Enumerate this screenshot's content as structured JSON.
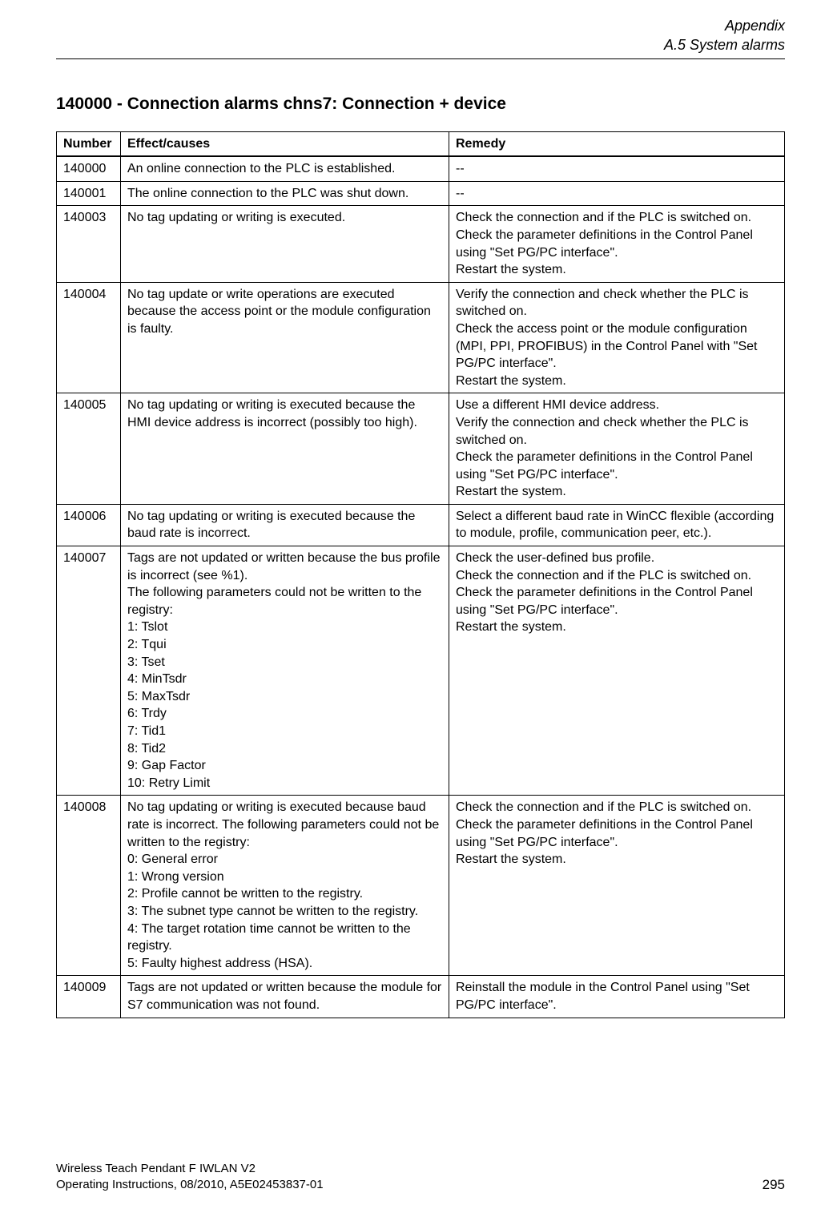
{
  "header": {
    "doc_section": "Appendix",
    "sub_section": "A.5 System alarms"
  },
  "section_title": "140000 - Connection alarms chns7: Connection + device",
  "table": {
    "columns": [
      "Number",
      "Effect/causes",
      "Remedy"
    ],
    "rows": [
      {
        "number": "140000",
        "effect": "An online connection to the PLC is established.",
        "remedy": "--"
      },
      {
        "number": "140001",
        "effect": "The online connection to the PLC was shut down.",
        "remedy": "--"
      },
      {
        "number": "140003",
        "effect": "No tag updating or writing is executed.",
        "remedy": "Check the connection and if the PLC is switched on.\nCheck the parameter definitions in the Control Panel using \"Set PG/PC interface\".\nRestart the system."
      },
      {
        "number": "140004",
        "effect": "No tag update or write operations are executed because the access point or the module configuration is faulty.",
        "remedy": "Verify the connection and check whether the PLC is switched on.\nCheck the access point or the module configuration (MPI, PPI, PROFIBUS) in the Control Panel with \"Set PG/PC interface\".\nRestart the system."
      },
      {
        "number": "140005",
        "effect": "No tag updating or writing is executed because the HMI device address is incorrect (possibly too high).",
        "remedy": "Use a different HMI device address.\nVerify the connection and check whether the PLC is switched on.\nCheck the parameter definitions in the Control Panel using \"Set PG/PC interface\".\nRestart the system."
      },
      {
        "number": "140006",
        "effect": "No tag updating or writing is executed because the baud rate is incorrect.",
        "remedy": "Select a different baud rate in WinCC flexible (according to module, profile, communication peer, etc.)."
      },
      {
        "number": "140007",
        "effect": "Tags are not updated or written because the bus profile is incorrect (see %1).\nThe following parameters could not be written to the registry:\n1:  Tslot\n2:  Tqui\n3:  Tset\n4:  MinTsdr\n5:  MaxTsdr\n6:  Trdy\n7:  Tid1\n8:  Tid2\n9:  Gap Factor\n10: Retry Limit",
        "remedy": "Check the user-defined bus profile.\nCheck the connection and if the PLC is switched on.\nCheck the parameter definitions in the Control Panel using \"Set PG/PC interface\".\nRestart the system."
      },
      {
        "number": "140008",
        "effect": "No tag updating or writing is executed because baud rate is incorrect. The following parameters could not be written to the registry:\n0:  General error\n1:  Wrong version\n2:  Profile cannot be written to the registry.\n3:  The subnet type cannot be written to the registry.\n4:  The target rotation time cannot be written to the registry.\n5:  Faulty highest address (HSA).",
        "remedy": "Check the connection and if the PLC is switched on.\nCheck the parameter definitions in the Control Panel using \"Set PG/PC interface\".\nRestart the system."
      },
      {
        "number": "140009",
        "effect": "Tags are not updated or written because the module for S7 communication was not found.",
        "remedy": "Reinstall the module in the Control Panel using \"Set PG/PC interface\"."
      }
    ]
  },
  "footer": {
    "line1": "Wireless Teach Pendant F IWLAN V2",
    "line2": "Operating Instructions, 08/2010, A5E02453837-01",
    "page_number": "295"
  }
}
